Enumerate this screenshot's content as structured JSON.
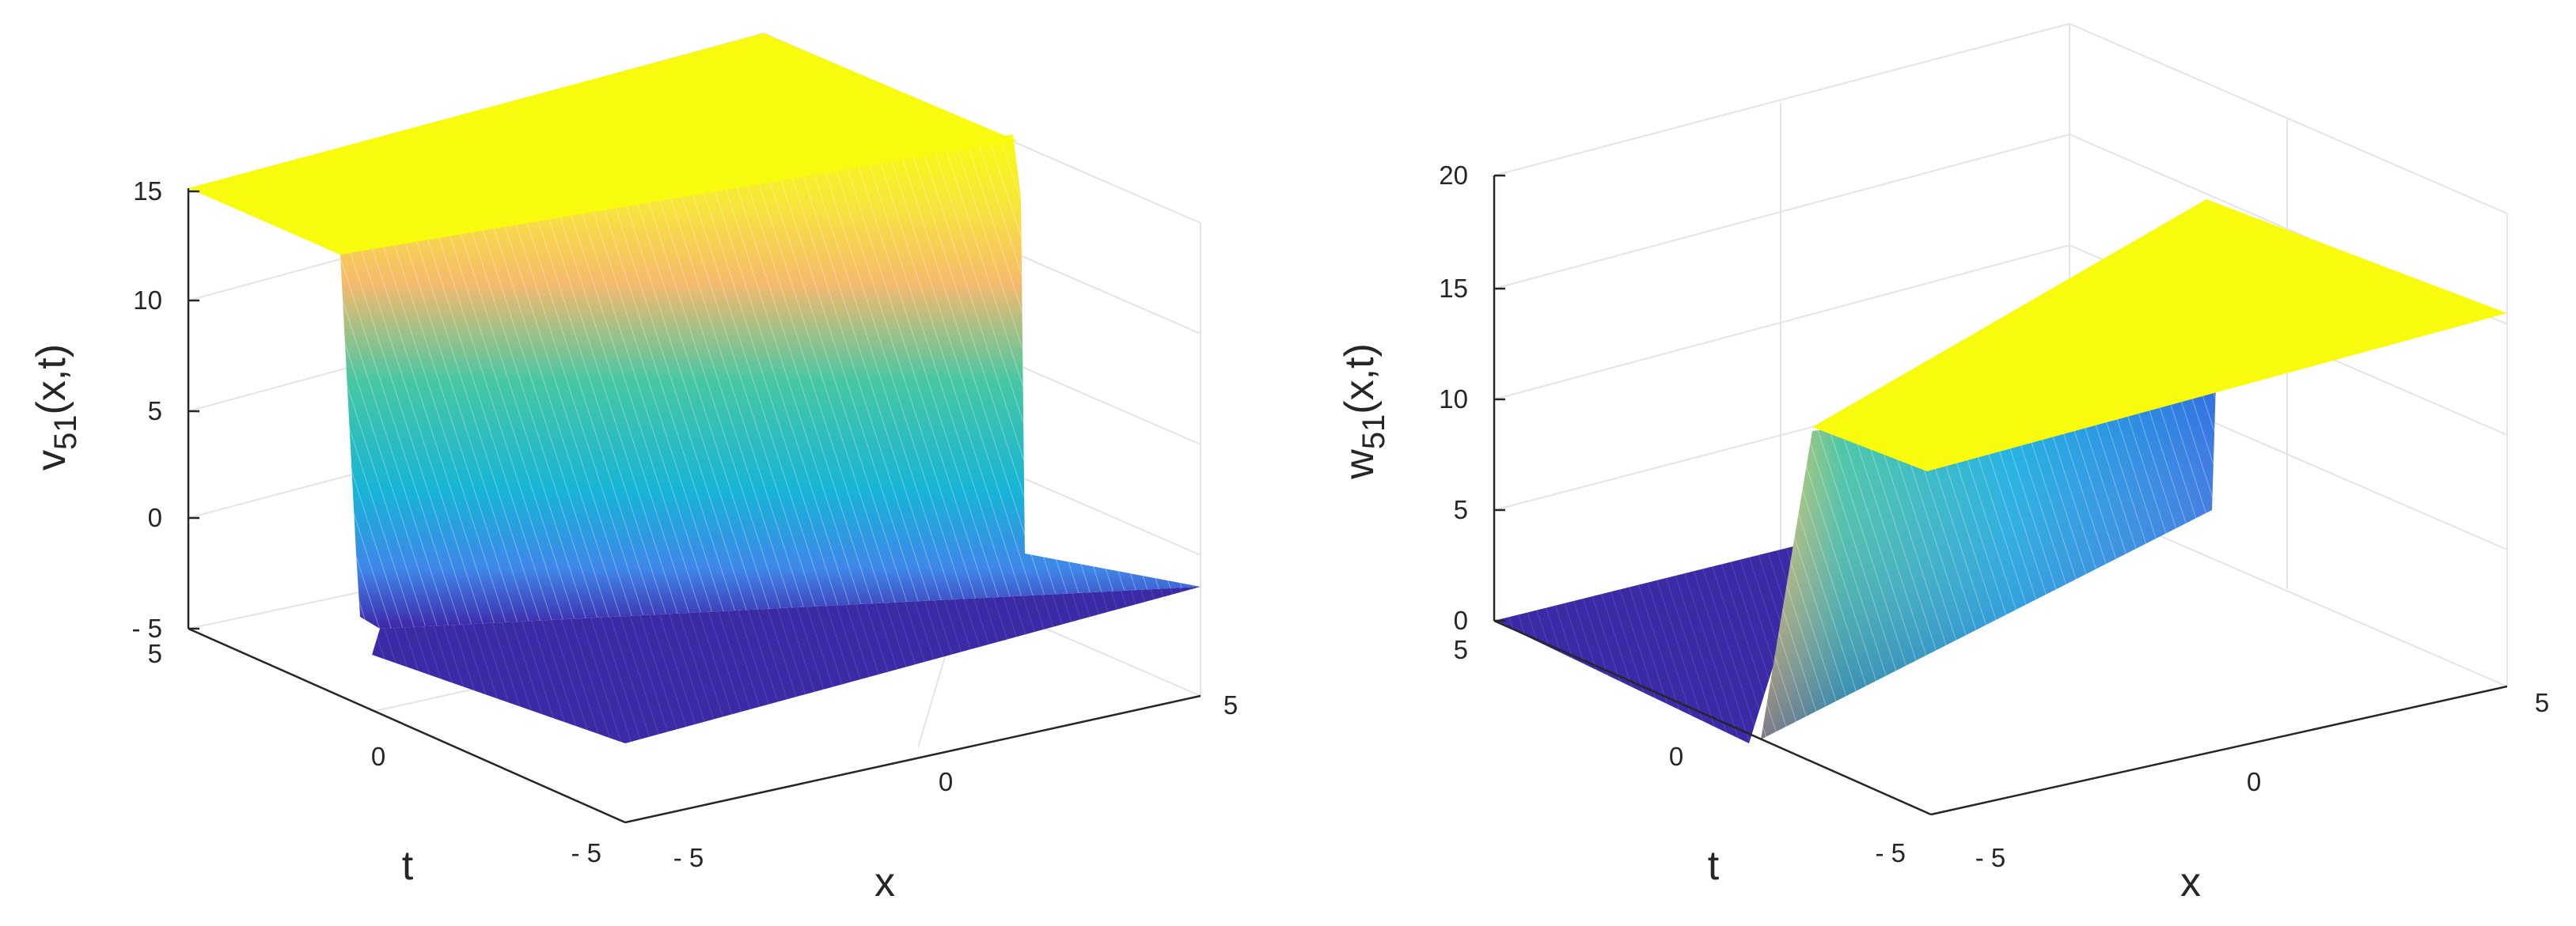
{
  "chart_data": [
    {
      "type": "surface",
      "title": "",
      "xlabel": "x",
      "ylabel": "t",
      "zlabel": {
        "main": "v",
        "sub": "51",
        "args": "(x,t)"
      },
      "xlim": [
        -5,
        5
      ],
      "ylim": [
        -5,
        5
      ],
      "zlim": [
        -5,
        15
      ],
      "xticks": [
        "- 5",
        "0",
        "5"
      ],
      "yticks": [
        "- 5",
        "0",
        "5"
      ],
      "zticks": [
        "- 5",
        "0",
        "5",
        "10",
        "15"
      ],
      "surface": {
        "description": "kink front along a line in the x-t plane",
        "low_value": -5,
        "high_value": 14.5,
        "front": "high where t > x (approx.), low where t < x",
        "samples": [
          {
            "x": -5,
            "t": 5,
            "z": 14.5
          },
          {
            "x": 5,
            "t": 5,
            "z": 14.5
          },
          {
            "x": -5,
            "t": -5,
            "z": -5
          },
          {
            "x": 5,
            "t": -5,
            "z": -5
          }
        ]
      },
      "colormap": [
        "#3e26a8",
        "#1a7ded",
        "#14b1d9",
        "#4ec8a0",
        "#f5b93e",
        "#f9fb0e"
      ],
      "grid": true
    },
    {
      "type": "surface",
      "title": "",
      "xlabel": "x",
      "ylabel": "t",
      "zlabel": {
        "main": "w",
        "sub": "51",
        "args": "(x,t)"
      },
      "xlim": [
        -5,
        5
      ],
      "ylim": [
        -5,
        5
      ],
      "zlim": [
        0,
        20
      ],
      "xticks": [
        "- 5",
        "0",
        "5"
      ],
      "yticks": [
        "- 5",
        "0",
        "5"
      ],
      "zticks": [
        "0",
        "5",
        "10",
        "15",
        "20"
      ],
      "surface": {
        "description": "step front along t = 0, plateau rising linearly in x",
        "low_value": 0,
        "front_line": "t = 0",
        "samples": [
          {
            "x": -5,
            "t": 0,
            "z": 10
          },
          {
            "x": 5,
            "t": 0,
            "z": 10
          },
          {
            "x": 5,
            "t": -5,
            "z": 19
          },
          {
            "x": -5,
            "t": -5,
            "z": 15
          }
        ]
      },
      "colormap": [
        "#3e26a8",
        "#1a7ded",
        "#14b1d9",
        "#4ec8a0",
        "#f5b93e",
        "#f9fb0e"
      ],
      "grid": true
    }
  ]
}
